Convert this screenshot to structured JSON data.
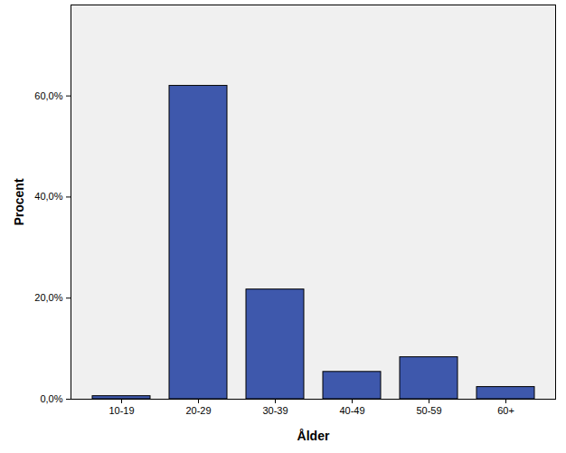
{
  "chart_data": {
    "type": "bar",
    "categories": [
      "10-19",
      "20-29",
      "30-39",
      "40-49",
      "50-59",
      "60+"
    ],
    "values": [
      0.6,
      62.0,
      21.7,
      5.4,
      8.3,
      2.4
    ],
    "color": "#3e58ac",
    "xlabel": "Ålder",
    "ylabel": "Procent",
    "ylim": [
      0,
      78
    ],
    "yticks": [
      {
        "value": 0,
        "label": "0,0%"
      },
      {
        "value": 20,
        "label": "20,0%"
      },
      {
        "value": 40,
        "label": "40,0%"
      },
      {
        "value": 60,
        "label": "60,0%"
      }
    ],
    "grid": false
  }
}
